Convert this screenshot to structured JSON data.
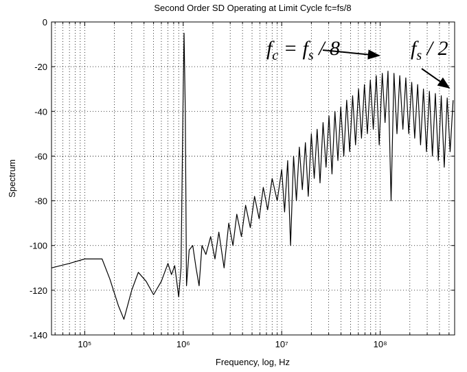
{
  "chart_data": {
    "type": "line",
    "title": "Second Order SD Operating at Limit Cycle fc=fs/8",
    "x_label": "Frequency, log, Hz",
    "y_label": "Spectrum",
    "x_scale": "log",
    "grid": true,
    "minor_grid": true,
    "color": "#000000",
    "xlim": [
      46000,
      570000000
    ],
    "xticks": [
      {
        "value": 100000,
        "label": "10⁵"
      },
      {
        "value": 1000000,
        "label": "10⁶"
      },
      {
        "value": 10000000,
        "label": "10⁷"
      },
      {
        "value": 100000000,
        "label": "10⁸"
      }
    ],
    "ylim": [
      -140,
      0
    ],
    "yticks": [
      0,
      -20,
      -40,
      -60,
      -80,
      -100,
      -120,
      -140
    ],
    "annotations": [
      {
        "parts": [
          "f",
          "c",
          " = f",
          "s",
          " / 8"
        ]
      },
      {
        "parts": [
          "f",
          "s",
          " / 2"
        ]
      }
    ],
    "x": [
      46000,
      70000,
      100000,
      150000,
      180000,
      220000,
      250000,
      300000,
      350000,
      420000,
      500000,
      600000,
      700000,
      760000,
      820000,
      900000,
      950000,
      1000000,
      1020000,
      1050000,
      1080000,
      1150000,
      1250000,
      1350000,
      1450000,
      1550000,
      1700000,
      1900000,
      2100000,
      2300000,
      2600000,
      2900000,
      3200000,
      3500000,
      3900000,
      4300000,
      4800000,
      5300000,
      5900000,
      6500000,
      7200000,
      8000000,
      9000000,
      10000000,
      10700000,
      11500000,
      12300000,
      13200000,
      14100000,
      15100000,
      16200000,
      17400000,
      18600000,
      20000000,
      21400000,
      22900000,
      24500000,
      26300000,
      28200000,
      30200000,
      32400000,
      34700000,
      37200000,
      39800000,
      42700000,
      45700000,
      49000000,
      52500000,
      56200000,
      60300000,
      64600000,
      69200000,
      74100000,
      79400000,
      85100000,
      91200000,
      97700000,
      105000000,
      112000000,
      120000000,
      129000000,
      138000000,
      148000000,
      158000000,
      170000000,
      182000000,
      195000000,
      209000000,
      224000000,
      240000000,
      257000000,
      275000000,
      295000000,
      316000000,
      339000000,
      363000000,
      389000000,
      417000000,
      447000000,
      479000000,
      513000000,
      550000000
    ],
    "values": [
      -110,
      -108,
      -106,
      -106,
      -115,
      -127,
      -133,
      -120,
      -112,
      -116,
      -122,
      -116,
      -108,
      -113,
      -109,
      -123,
      -110,
      -30,
      -5,
      -40,
      -118,
      -102,
      -100,
      -110,
      -118,
      -100,
      -104,
      -96,
      -106,
      -94,
      -110,
      -90,
      -100,
      -86,
      -96,
      -82,
      -92,
      -78,
      -88,
      -74,
      -84,
      -70,
      -80,
      -66,
      -85,
      -62,
      -100,
      -60,
      -80,
      -56,
      -75,
      -54,
      -78,
      -50,
      -70,
      -48,
      -72,
      -45,
      -65,
      -42,
      -68,
      -40,
      -62,
      -38,
      -60,
      -35,
      -58,
      -33,
      -55,
      -30,
      -52,
      -28,
      -50,
      -26,
      -48,
      -24,
      -55,
      -23,
      -45,
      -22,
      -80,
      -23,
      -50,
      -24,
      -48,
      -25,
      -50,
      -27,
      -52,
      -28,
      -55,
      -30,
      -58,
      -31,
      -60,
      -32,
      -62,
      -33,
      -65,
      -34,
      -58,
      -35
    ]
  }
}
